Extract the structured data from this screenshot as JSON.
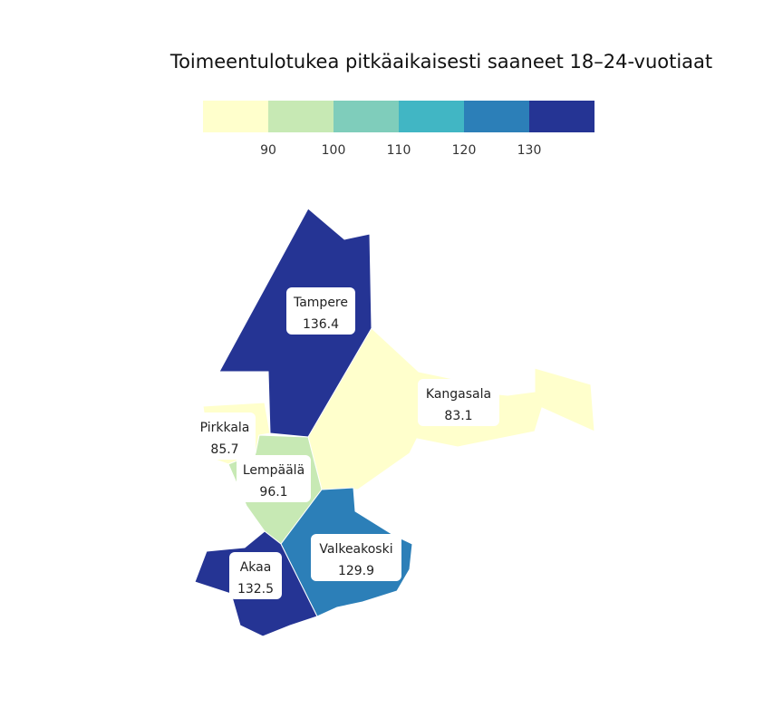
{
  "title": "Toimeentulotukea pitkäaikaisesti saaneet 18–24-vuotiaat",
  "legend": {
    "ticks": [
      "90",
      "100",
      "110",
      "120",
      "130"
    ],
    "colors": [
      "#ffffcc",
      "#c7e9b4",
      "#7fcdbb",
      "#41b6c4",
      "#2c7fb8",
      "#253494"
    ]
  },
  "regions": [
    {
      "name": "Tampere",
      "value": "136.4",
      "color": "#253494"
    },
    {
      "name": "Kangasala",
      "value": "83.1",
      "color": "#ffffcc"
    },
    {
      "name": "Pirkkala",
      "value": "85.7",
      "color": "#ffffcc"
    },
    {
      "name": "Lempäälä",
      "value": "96.1",
      "color": "#c7e9b4"
    },
    {
      "name": "Valkeakoski",
      "value": "129.9",
      "color": "#2c7fb8"
    },
    {
      "name": "Akaa",
      "value": "132.5",
      "color": "#253494"
    }
  ]
}
